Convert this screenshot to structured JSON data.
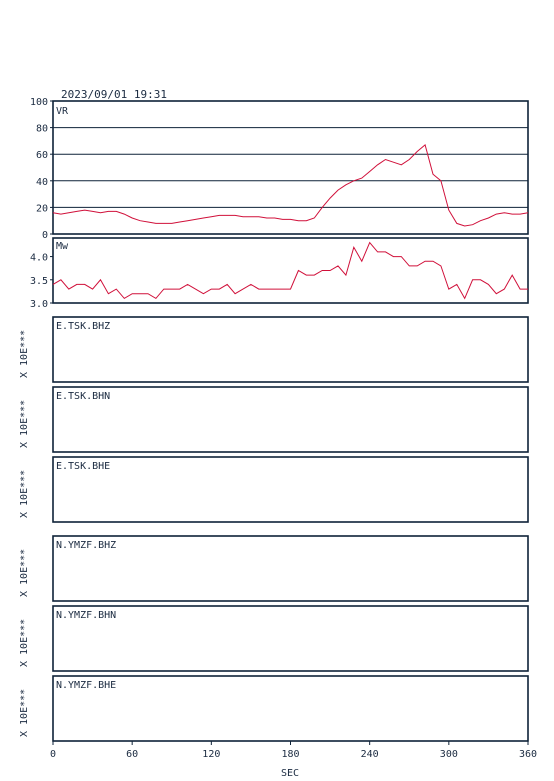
{
  "header": {
    "datetime": "2023/09/01  19:31"
  },
  "colors": {
    "trace": "#d0103a",
    "axes": "#0e2238"
  },
  "chart_data": [
    {
      "type": "line",
      "panel": "VR",
      "label": "VR",
      "ylim": [
        0,
        100
      ],
      "yticks": [
        "0",
        "20",
        "40",
        "60",
        "80",
        "100"
      ],
      "grid": true,
      "x": [
        0,
        6,
        12,
        18,
        24,
        30,
        36,
        42,
        48,
        54,
        60,
        66,
        72,
        78,
        84,
        90,
        96,
        102,
        108,
        114,
        120,
        126,
        132,
        138,
        144,
        150,
        156,
        162,
        168,
        174,
        180,
        186,
        192,
        198,
        204,
        210,
        216,
        222,
        228,
        234,
        240,
        246,
        252,
        258,
        264,
        270,
        276,
        282,
        288,
        294,
        300,
        306,
        312,
        318,
        324,
        330,
        336,
        342,
        348,
        354,
        360
      ],
      "y": [
        16,
        15,
        16,
        17,
        18,
        17,
        16,
        17,
        17,
        15,
        12,
        10,
        9,
        8,
        8,
        8,
        9,
        10,
        11,
        12,
        13,
        14,
        14,
        14,
        13,
        13,
        13,
        12,
        12,
        11,
        11,
        10,
        10,
        12,
        20,
        27,
        33,
        37,
        40,
        42,
        47,
        52,
        56,
        54,
        52,
        56,
        62,
        67,
        45,
        40,
        18,
        8,
        6,
        7,
        10,
        12,
        15,
        16,
        15,
        15,
        16
      ]
    },
    {
      "type": "line",
      "panel": "Mw",
      "label": "Mw",
      "ylim": [
        3.0,
        4.4
      ],
      "yticks": [
        "3.0",
        "3.5",
        "4.0"
      ],
      "grid": false,
      "x": [
        0,
        6,
        12,
        18,
        24,
        30,
        36,
        42,
        48,
        54,
        60,
        66,
        72,
        78,
        84,
        90,
        96,
        102,
        108,
        114,
        120,
        126,
        132,
        138,
        144,
        150,
        156,
        162,
        168,
        174,
        180,
        186,
        192,
        198,
        204,
        210,
        216,
        222,
        228,
        234,
        240,
        246,
        252,
        258,
        264,
        270,
        276,
        282,
        288,
        294,
        300,
        306,
        312,
        318,
        324,
        330,
        336,
        342,
        348,
        354,
        360
      ],
      "y": [
        3.4,
        3.5,
        3.3,
        3.4,
        3.4,
        3.3,
        3.5,
        3.2,
        3.3,
        3.1,
        3.2,
        3.2,
        3.2,
        3.1,
        3.3,
        3.3,
        3.3,
        3.4,
        3.3,
        3.2,
        3.3,
        3.3,
        3.4,
        3.2,
        3.3,
        3.4,
        3.3,
        3.3,
        3.3,
        3.3,
        3.3,
        3.7,
        3.6,
        3.6,
        3.7,
        3.7,
        3.8,
        3.6,
        4.2,
        3.9,
        4.3,
        4.1,
        4.1,
        4.0,
        4.0,
        3.8,
        3.8,
        3.9,
        3.9,
        3.8,
        3.3,
        3.4,
        3.1,
        3.5,
        3.5,
        3.4,
        3.2,
        3.3,
        3.6,
        3.3,
        3.3
      ]
    }
  ],
  "stations": [
    {
      "label": "E.TSK.BHZ",
      "scale": "X 10E***"
    },
    {
      "label": "E.TSK.BHN",
      "scale": "X 10E***"
    },
    {
      "label": "E.TSK.BHE",
      "scale": "X 10E***"
    },
    {
      "label": "N.YMZF.BHZ",
      "scale": "X 10E***"
    },
    {
      "label": "N.YMZF.BHN",
      "scale": "X 10E***"
    },
    {
      "label": "N.YMZF.BHE",
      "scale": "X 10E***"
    }
  ],
  "x_axis": {
    "label": "SEC",
    "range": [
      0,
      360
    ],
    "ticks": [
      "0",
      "60",
      "120",
      "180",
      "240",
      "300",
      "360"
    ]
  }
}
